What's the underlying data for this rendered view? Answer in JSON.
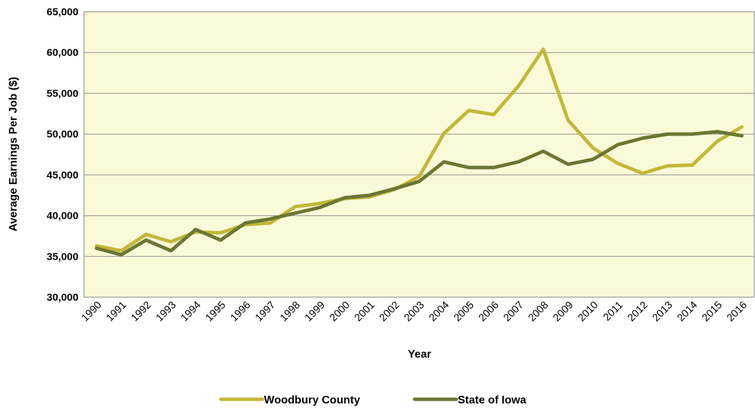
{
  "chart_data": {
    "type": "line",
    "title": "",
    "xlabel": "Year",
    "ylabel": "Average Earnings Per Job ($)",
    "ylim": [
      30000,
      65000
    ],
    "y_ticks": [
      "30,000",
      "35,000",
      "40,000",
      "45,000",
      "50,000",
      "55,000",
      "60,000",
      "65,000"
    ],
    "categories": [
      "1990",
      "1991",
      "1992",
      "1993",
      "1994",
      "1995",
      "1996",
      "1997",
      "1998",
      "1999",
      "2000",
      "2001",
      "2002",
      "2003",
      "2004",
      "2005",
      "2006",
      "2007",
      "2008",
      "2009",
      "2010",
      "2011",
      "2012",
      "2013",
      "2014",
      "2015",
      "2016"
    ],
    "series": [
      {
        "name": "Woodbury County",
        "color": "#C3B73A",
        "values": [
          36300,
          35700,
          37700,
          36800,
          38000,
          37900,
          38900,
          39100,
          41100,
          41500,
          42100,
          42300,
          43200,
          44800,
          50100,
          52900,
          52400,
          55900,
          60400,
          51700,
          48300,
          46400,
          45200,
          46100,
          46200,
          49100,
          50900
        ]
      },
      {
        "name": "State of Iowa",
        "color": "#6B7634",
        "values": [
          36000,
          35200,
          37000,
          35700,
          38300,
          37000,
          39100,
          39600,
          40300,
          41000,
          42200,
          42500,
          43300,
          44200,
          46600,
          45900,
          45900,
          46600,
          47900,
          46300,
          46900,
          48700,
          49500,
          50000,
          50000,
          50300,
          49800
        ]
      }
    ],
    "grid": {
      "horizontal": true,
      "vertical": false
    },
    "background": "#FAFAD8",
    "legend_position": "bottom"
  }
}
